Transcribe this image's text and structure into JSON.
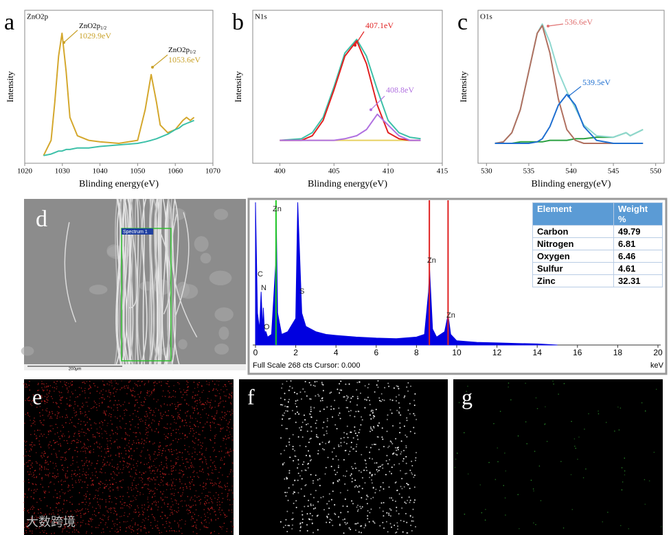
{
  "chart_data": [
    {
      "type": "line",
      "panel_label": "a",
      "title": "ZnO2p",
      "y_label": "Intensity",
      "x_label": "Blinding energy(eV)",
      "xlim": [
        1020,
        1070
      ],
      "xticks": [
        1020,
        1030,
        1040,
        1050,
        1060,
        1070
      ],
      "ylim": [
        0,
        100
      ],
      "x": [
        1025,
        1027,
        1028,
        1029,
        1029.9,
        1031,
        1032,
        1034,
        1037,
        1040,
        1045,
        1050,
        1052,
        1053.6,
        1055,
        1056,
        1058,
        1060,
        1061,
        1062,
        1063,
        1064,
        1065
      ],
      "series": [
        {
          "color": "#d4a72c",
          "values": [
            5,
            15,
            40,
            70,
            85,
            60,
            30,
            18,
            15,
            14,
            13,
            15,
            35,
            58,
            40,
            25,
            20,
            22,
            25,
            28,
            30,
            28,
            30
          ]
        },
        {
          "color": "#3cc0a8",
          "values": [
            5,
            6,
            7,
            8,
            8,
            9,
            9,
            10,
            10,
            11,
            12,
            13,
            14,
            15,
            16,
            17,
            19,
            22,
            23,
            25,
            26,
            27,
            28
          ]
        }
      ],
      "annotations": [
        {
          "text": "ZnO2p",
          "sub": "1/2",
          "label": "1029.9eV",
          "color": "#c9a22a"
        },
        {
          "text": "ZnO2p",
          "sub": "1/2",
          "label": "1053.6eV",
          "color": "#c9a22a"
        }
      ]
    },
    {
      "type": "line",
      "panel_label": "b",
      "title": "N1s",
      "y_label": "Intensity",
      "x_label": "Blinding energy(eV)",
      "xlim": [
        397.5,
        415
      ],
      "xticks": [
        400,
        405,
        410,
        415
      ],
      "ylim": [
        0,
        100
      ],
      "x": [
        400,
        402,
        403,
        404,
        405,
        406,
        407.1,
        408,
        409,
        410,
        411,
        412,
        413
      ],
      "series": [
        {
          "color": "#e8d060",
          "values": [
            15,
            15,
            15,
            15,
            15,
            15,
            15,
            15,
            15,
            15,
            15,
            15,
            15
          ]
        },
        {
          "color": "#3cc0a8",
          "values": [
            15,
            16,
            20,
            30,
            50,
            72,
            81,
            70,
            48,
            28,
            20,
            17,
            16
          ]
        },
        {
          "color": "#e02020",
          "values": [
            15,
            15,
            18,
            28,
            48,
            70,
            80,
            65,
            38,
            20,
            16,
            15,
            15
          ]
        },
        {
          "color": "#b070e0",
          "values": [
            15,
            15,
            15,
            15,
            15,
            16,
            18,
            22,
            32,
            25,
            18,
            15,
            15
          ]
        }
      ],
      "annotations": [
        {
          "label": "407.1eV",
          "color": "#e02020"
        },
        {
          "label": "408.8eV",
          "color": "#b070e0"
        }
      ]
    },
    {
      "type": "line",
      "panel_label": "c",
      "title": "O1s",
      "y_label": "Intensity",
      "x_label": "Blinding energy(eV)",
      "xlim": [
        529,
        551
      ],
      "xticks": [
        530,
        535,
        540,
        545,
        550
      ],
      "ylim": [
        0,
        100
      ],
      "x": [
        531,
        532,
        533,
        534,
        535,
        536,
        536.6,
        537.5,
        538.5,
        539.5,
        540.5,
        541.5,
        543,
        545,
        546.5,
        547,
        548.5
      ],
      "series": [
        {
          "color": "#2aa040",
          "values": [
            13,
            13,
            13,
            14,
            14,
            14,
            14,
            15,
            15,
            15,
            16,
            16,
            17,
            17,
            20,
            18,
            22
          ]
        },
        {
          "color": "#8fd8d0",
          "values": [
            13,
            14,
            20,
            35,
            60,
            85,
            91,
            79,
            60,
            47,
            36,
            25,
            18,
            17,
            20,
            18,
            22
          ]
        },
        {
          "color": "#b07060",
          "values": [
            13,
            14,
            20,
            35,
            60,
            85,
            90,
            72,
            42,
            22,
            15,
            13,
            13,
            13,
            13,
            13,
            13
          ]
        },
        {
          "color": "#1f6fd0",
          "values": [
            13,
            13,
            13,
            13,
            13,
            14,
            16,
            24,
            38,
            45,
            38,
            24,
            15,
            13,
            13,
            13,
            13
          ]
        }
      ],
      "annotations": [
        {
          "label": "536.6eV",
          "color": "#e07070"
        },
        {
          "label": "539.5eV",
          "color": "#1f6fd0"
        }
      ]
    },
    {
      "type": "area",
      "color": "#0000e0",
      "x_unit": "keV",
      "footer": "Full Scale 268 cts Cursor: 0.000",
      "xlim": [
        0,
        20
      ],
      "xticks": [
        0,
        2,
        4,
        6,
        8,
        10,
        12,
        14,
        16,
        18,
        20
      ],
      "ylim": [
        0,
        268
      ],
      "x": [
        0,
        0.1,
        0.2,
        0.28,
        0.35,
        0.39,
        0.45,
        0.52,
        0.6,
        0.8,
        1.0,
        1.02,
        1.1,
        1.3,
        1.6,
        2.0,
        2.1,
        2.3,
        2.5,
        3,
        3.5,
        4,
        5,
        6,
        7,
        8,
        8.4,
        8.6,
        8.65,
        8.8,
        9,
        9.4,
        9.57,
        9.7,
        10,
        11,
        12,
        13,
        14,
        15
      ],
      "values": [
        268,
        60,
        30,
        100,
        30,
        70,
        25,
        25,
        15,
        20,
        150,
        268,
        60,
        20,
        25,
        50,
        268,
        60,
        35,
        25,
        20,
        18,
        15,
        13,
        12,
        15,
        20,
        100,
        145,
        30,
        15,
        25,
        57,
        20,
        8,
        5,
        4,
        3,
        2,
        0
      ],
      "element_lines": [
        {
          "x": 1.02,
          "color": "#22cc22"
        },
        {
          "x": 8.64,
          "color": "#e02020"
        },
        {
          "x": 9.57,
          "color": "#e02020"
        }
      ],
      "peak_labels": [
        "C",
        "N",
        "O",
        "Zn",
        "S",
        "Zn",
        "Zn"
      ],
      "table": {
        "header": [
          "Element",
          "Weight %"
        ],
        "rows": [
          [
            "Carbon",
            49.79
          ],
          [
            "Nitrogen",
            6.81
          ],
          [
            "Oxygen",
            6.46
          ],
          [
            "Sulfur",
            4.61
          ],
          [
            "Zinc",
            32.31
          ]
        ]
      }
    }
  ],
  "sem": {
    "panel_label": "d",
    "spectrum_label": "Spectrum 1",
    "scale": "200μm"
  },
  "maps": [
    {
      "panel_label": "e"
    },
    {
      "panel_label": "f"
    },
    {
      "panel_label": "g"
    }
  ],
  "watermark": "大数跨境"
}
